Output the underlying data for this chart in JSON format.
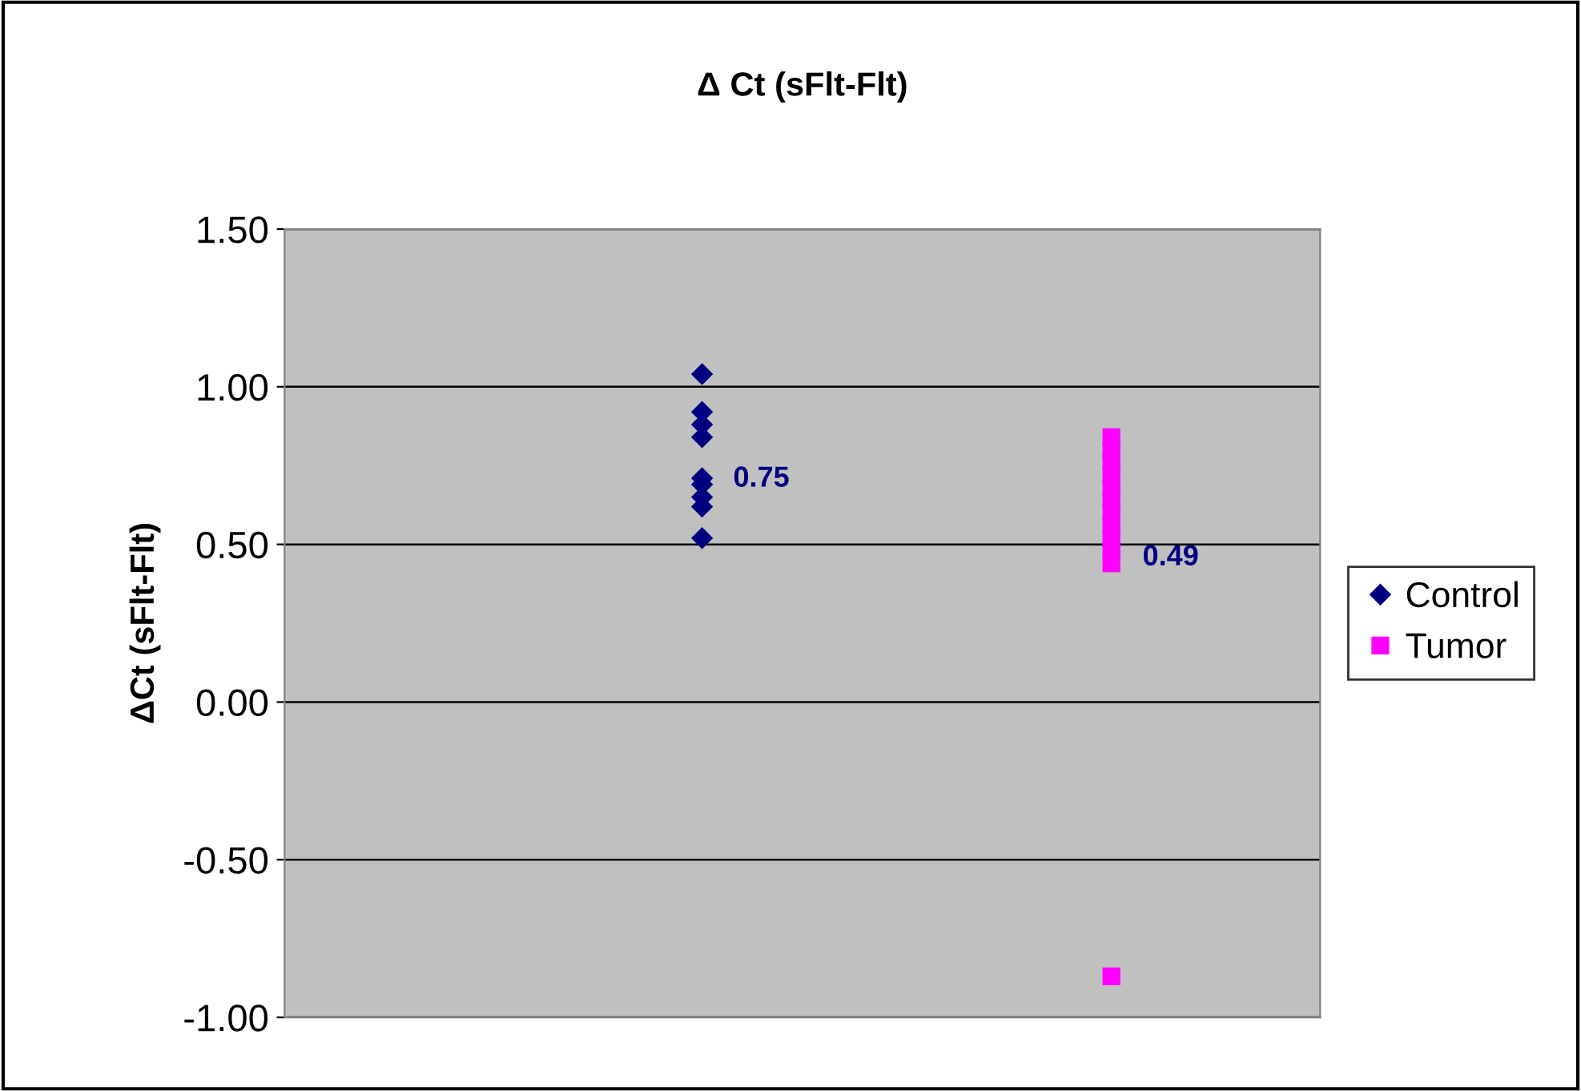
{
  "chart_data": {
    "type": "scatter",
    "title": "Δ Ct (sFlt-Flt)",
    "ylabel": "ΔCt (sFlt-Flt)",
    "categories": [
      null,
      null
    ],
    "series": [
      {
        "name": "Control",
        "color": "#000080",
        "marker": "diamond",
        "values": [
          1.04,
          null
        ]
      },
      {
        "color": "#000080",
        "marker": "diamond",
        "values": [
          0.92,
          null
        ]
      },
      {
        "color": "#000080",
        "marker": "diamond",
        "values": [
          0.88,
          null
        ]
      },
      {
        "color": "#000080",
        "marker": "diamond",
        "values": [
          0.84,
          null
        ]
      },
      {
        "color": "#000080",
        "marker": "diamond",
        "values": [
          0.71,
          null
        ]
      },
      {
        "color": "#000080",
        "marker": "diamond",
        "values": [
          0.69,
          null
        ]
      },
      {
        "color": "#000080",
        "marker": "diamond",
        "values": [
          0.65,
          null
        ]
      },
      {
        "color": "#000080",
        "marker": "diamond",
        "values": [
          0.62,
          null
        ]
      },
      {
        "color": "#000080",
        "marker": "diamond",
        "values": [
          0.52,
          null
        ]
      },
      {
        "name": "Tumor",
        "color": "#ff00ff",
        "marker": "square",
        "values": [
          null,
          0.84
        ]
      },
      {
        "color": "#ff00ff",
        "marker": "square",
        "values": [
          null,
          0.8
        ]
      },
      {
        "color": "#ff00ff",
        "marker": "square",
        "values": [
          null,
          0.76
        ]
      },
      {
        "color": "#ff00ff",
        "marker": "square",
        "values": [
          null,
          0.72
        ]
      },
      {
        "color": "#ff00ff",
        "marker": "square",
        "values": [
          null,
          0.68
        ]
      },
      {
        "color": "#ff00ff",
        "marker": "square",
        "values": [
          null,
          0.64
        ]
      },
      {
        "color": "#ff00ff",
        "marker": "square",
        "values": [
          null,
          0.6
        ]
      },
      {
        "color": "#ff00ff",
        "marker": "square",
        "values": [
          null,
          0.56
        ]
      },
      {
        "color": "#ff00ff",
        "marker": "square",
        "values": [
          null,
          0.52
        ]
      },
      {
        "color": "#ff00ff",
        "marker": "square",
        "values": [
          null,
          0.48
        ]
      },
      {
        "color": "#ff00ff",
        "marker": "square",
        "values": [
          null,
          0.44
        ]
      },
      {
        "color": "#ff00ff",
        "marker": "square",
        "values": [
          null,
          -0.87
        ]
      }
    ],
    "annotations": [
      "0.75",
      "0.49"
    ],
    "ylim": [
      -1.0,
      1.5
    ],
    "yticks": [
      {
        "value": -1.0,
        "label": "-1.00"
      },
      {
        "value": -0.5,
        "label": "-0.50"
      },
      {
        "value": 0.0,
        "label": "0.00"
      },
      {
        "value": 0.5,
        "label": "0.50"
      },
      {
        "value": 1.0,
        "label": "1.00"
      },
      {
        "value": 1.5,
        "label": "1.50"
      }
    ],
    "grid": "y",
    "legend": "right",
    "tick_labels": "y"
  }
}
